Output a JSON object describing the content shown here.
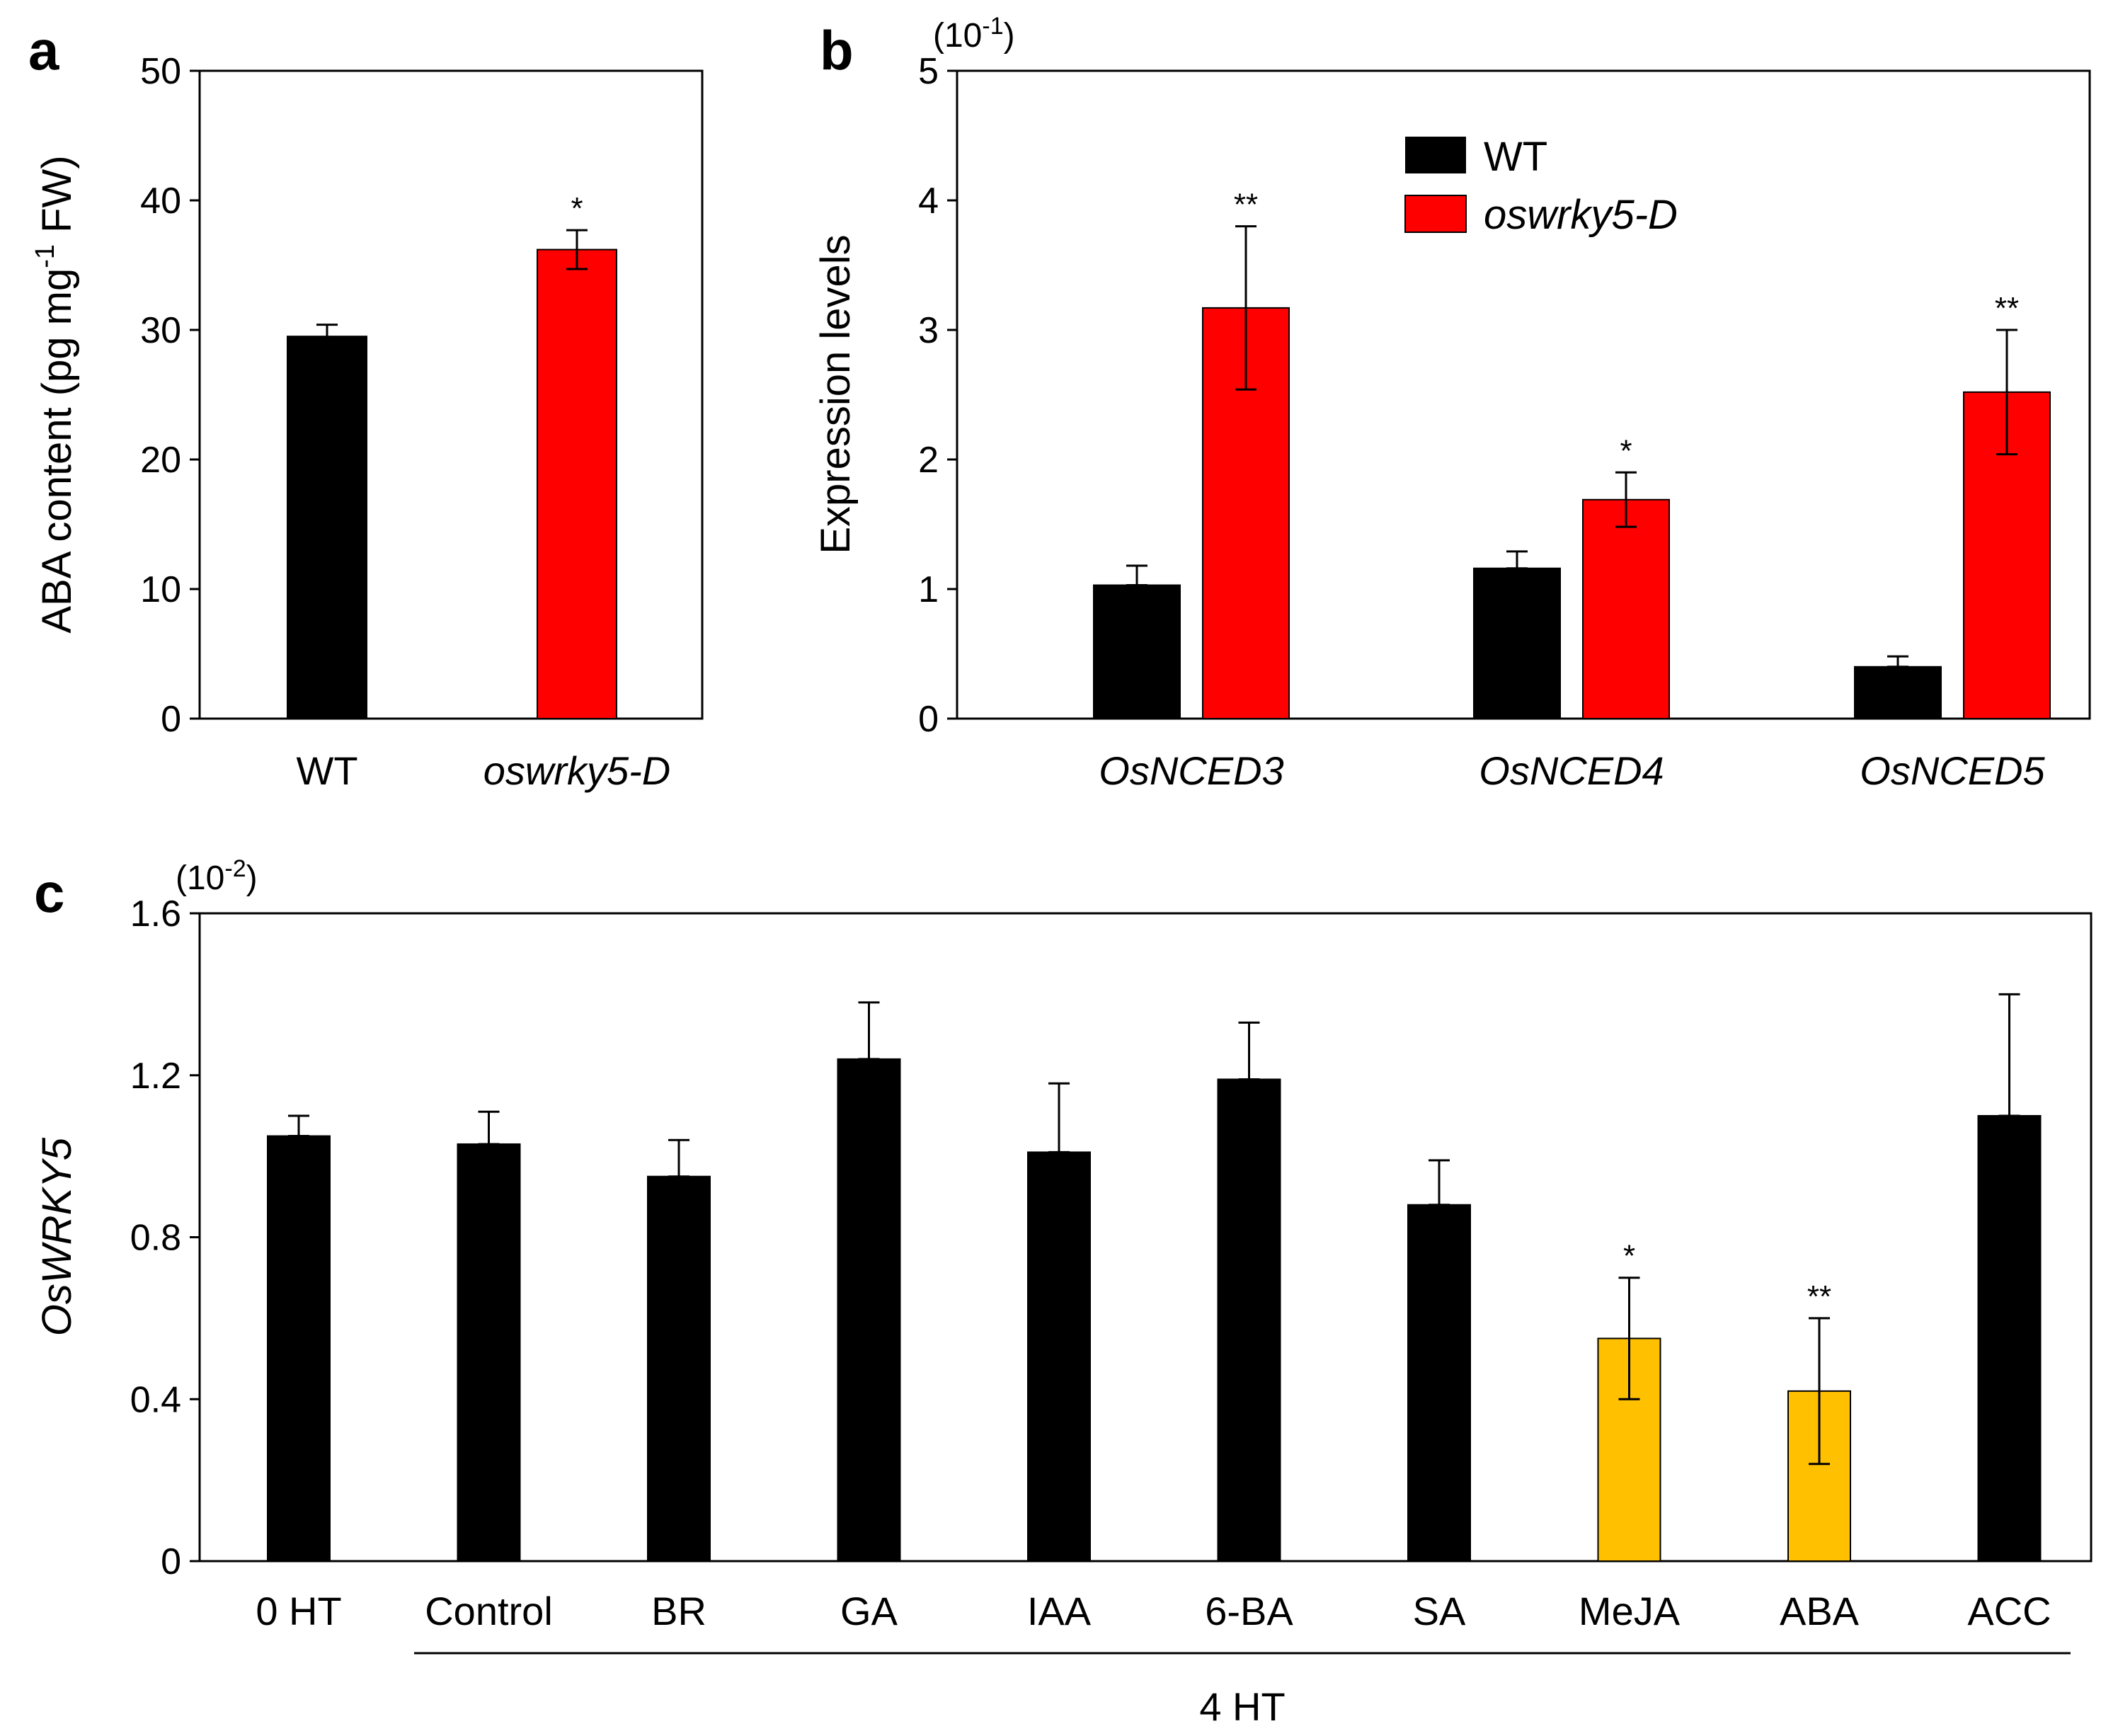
{
  "colors": {
    "wt": "#000000",
    "mutant": "#ff0000",
    "treated_sig": "#ffc000",
    "axis": "#000000"
  },
  "chart_data": [
    {
      "panel": "a",
      "type": "bar",
      "ylabel": {
        "pre": "ABA content (pg mg",
        "sup": "-1",
        "post": " FW)"
      },
      "ylim": [
        0,
        50
      ],
      "yticks": [
        0,
        10,
        20,
        30,
        40,
        50
      ],
      "categories": [
        "WT",
        "oswrky5-D"
      ],
      "italic_categories": [
        false,
        true
      ],
      "values": [
        29.5,
        36.2
      ],
      "errors": [
        0.9,
        1.5
      ],
      "significance": [
        "",
        "*"
      ],
      "series_colors": [
        "wt",
        "mutant"
      ]
    },
    {
      "panel": "b",
      "type": "bar",
      "scale": {
        "base": "(10",
        "sup": "-1",
        "close": ")"
      },
      "ylabel": "Expression levels",
      "ylim": [
        0,
        5
      ],
      "yticks": [
        0,
        1,
        2,
        3,
        4,
        5
      ],
      "categories": [
        "OsNCED3",
        "OsNCED4",
        "OsNCED5"
      ],
      "series": [
        {
          "name": "WT",
          "values": [
            1.03,
            1.16,
            0.4
          ],
          "errors": [
            0.15,
            0.13,
            0.08
          ],
          "significance": [
            "",
            "",
            ""
          ],
          "color": "wt"
        },
        {
          "name": "oswrky5-D",
          "values": [
            3.17,
            1.69,
            2.52
          ],
          "errors": [
            0.63,
            0.21,
            0.48
          ],
          "significance": [
            "**",
            "*",
            "**"
          ],
          "color": "mutant"
        }
      ],
      "legend": {
        "position": "top-center"
      }
    },
    {
      "panel": "c",
      "type": "bar",
      "scale": {
        "base": "(10",
        "sup": "-2",
        "close": ")"
      },
      "ylabel": {
        "ital": "Os",
        "norm": "WRKY5"
      },
      "ylim": [
        0,
        1.6
      ],
      "yticks": [
        "0",
        "0.4",
        "0.8",
        "1.2",
        "1.6"
      ],
      "categories": [
        "0 HT",
        "Control",
        "BR",
        "GA",
        "IAA",
        "6-BA",
        "SA",
        "MeJA",
        "ABA",
        "ACC"
      ],
      "values": [
        1.05,
        1.03,
        0.95,
        1.24,
        1.01,
        1.19,
        0.88,
        0.55,
        0.42,
        1.1
      ],
      "errors": [
        0.05,
        0.08,
        0.09,
        0.14,
        0.17,
        0.14,
        0.11,
        0.15,
        0.18,
        0.3
      ],
      "significance": [
        "",
        "",
        "",
        "",
        "",
        "",
        "",
        "*",
        "**",
        ""
      ],
      "highlight": [
        false,
        false,
        false,
        false,
        false,
        false,
        false,
        true,
        true,
        false
      ],
      "group_label": "4 HT"
    }
  ]
}
